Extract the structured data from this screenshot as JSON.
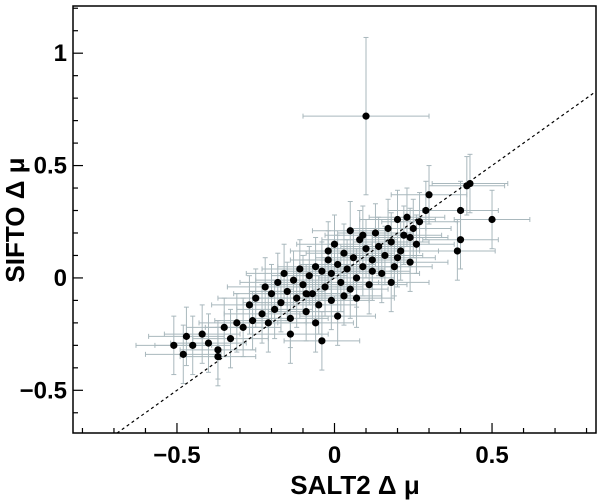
{
  "chart_data": {
    "type": "scatter",
    "title": "",
    "xlabel": "SALT2 Δ μ",
    "ylabel": "SIFTO Δ μ",
    "xlim": [
      -0.83,
      0.83
    ],
    "ylim": [
      -0.69,
      1.21
    ],
    "x_ticks": [
      -0.5,
      0,
      0.5
    ],
    "y_ticks": [
      -0.5,
      0,
      0.5,
      1
    ],
    "x_tick_labels": [
      "−0.5",
      "0",
      "0.5"
    ],
    "y_tick_labels": [
      "−0.5",
      "0",
      "0.5",
      "1"
    ],
    "grid": false,
    "legend": "none",
    "reference_line": {
      "style": "dashed",
      "slope": 1,
      "intercept": 0,
      "color": "#000000"
    },
    "colors": {
      "points": "#000000",
      "error_bars": "#a9b8bd",
      "frame": "#000000"
    },
    "series": [
      {
        "values": [
          {
            "x": 0.1,
            "y": 0.72,
            "xerr": 0.2,
            "yerr": 0.35
          },
          {
            "x": 0.5,
            "y": 0.26,
            "xerr": 0.12,
            "yerr": 0.13
          },
          {
            "x": 0.43,
            "y": 0.42,
            "xerr": 0.12,
            "yerr": 0.13
          },
          {
            "x": 0.42,
            "y": 0.41,
            "xerr": 0.12,
            "yerr": 0.13
          },
          {
            "x": 0.4,
            "y": 0.3,
            "xerr": 0.12,
            "yerr": 0.13
          },
          {
            "x": 0.4,
            "y": 0.17,
            "xerr": 0.12,
            "yerr": 0.13
          },
          {
            "x": 0.39,
            "y": 0.12,
            "xerr": 0.12,
            "yerr": 0.13
          },
          {
            "x": 0.3,
            "y": 0.37,
            "xerr": 0.12,
            "yerr": 0.13
          },
          {
            "x": 0.29,
            "y": 0.3,
            "xerr": 0.12,
            "yerr": 0.13
          },
          {
            "x": 0.27,
            "y": 0.25,
            "xerr": 0.12,
            "yerr": 0.13
          },
          {
            "x": 0.26,
            "y": 0.15,
            "xerr": 0.12,
            "yerr": 0.13
          },
          {
            "x": 0.25,
            "y": 0.22,
            "xerr": 0.12,
            "yerr": 0.13
          },
          {
            "x": 0.24,
            "y": 0.07,
            "xerr": 0.12,
            "yerr": 0.13
          },
          {
            "x": 0.23,
            "y": 0.27,
            "xerr": 0.12,
            "yerr": 0.13
          },
          {
            "x": 0.22,
            "y": 0.19,
            "xerr": 0.12,
            "yerr": 0.13
          },
          {
            "x": 0.21,
            "y": 0.12,
            "xerr": 0.12,
            "yerr": 0.13
          },
          {
            "x": 0.2,
            "y": 0.26,
            "xerr": 0.12,
            "yerr": 0.13
          },
          {
            "x": 0.19,
            "y": 0.05,
            "xerr": 0.12,
            "yerr": 0.13
          },
          {
            "x": 0.18,
            "y": 0.16,
            "xerr": 0.12,
            "yerr": 0.13
          },
          {
            "x": 0.17,
            "y": 0.22,
            "xerr": 0.12,
            "yerr": 0.13
          },
          {
            "x": 0.16,
            "y": 0.1,
            "xerr": 0.12,
            "yerr": 0.13
          },
          {
            "x": 0.15,
            "y": 0.02,
            "xerr": 0.12,
            "yerr": 0.13
          },
          {
            "x": 0.14,
            "y": 0.14,
            "xerr": 0.12,
            "yerr": 0.13
          },
          {
            "x": 0.13,
            "y": 0.2,
            "xerr": 0.12,
            "yerr": 0.13
          },
          {
            "x": 0.12,
            "y": 0.08,
            "xerr": 0.12,
            "yerr": 0.13
          },
          {
            "x": 0.11,
            "y": -0.03,
            "xerr": 0.12,
            "yerr": 0.13
          },
          {
            "x": 0.1,
            "y": 0.13,
            "xerr": 0.12,
            "yerr": 0.13
          },
          {
            "x": 0.09,
            "y": 0.05,
            "xerr": 0.12,
            "yerr": 0.13
          },
          {
            "x": 0.08,
            "y": 0.17,
            "xerr": 0.12,
            "yerr": 0.13
          },
          {
            "x": 0.07,
            "y": 0.0,
            "xerr": 0.12,
            "yerr": 0.13
          },
          {
            "x": 0.06,
            "y": 0.09,
            "xerr": 0.12,
            "yerr": 0.13
          },
          {
            "x": 0.05,
            "y": 0.21,
            "xerr": 0.12,
            "yerr": 0.13
          },
          {
            "x": 0.05,
            "y": -0.05,
            "xerr": 0.12,
            "yerr": 0.13
          },
          {
            "x": 0.04,
            "y": 0.04,
            "xerr": 0.12,
            "yerr": 0.13
          },
          {
            "x": 0.03,
            "y": 0.11,
            "xerr": 0.12,
            "yerr": 0.13
          },
          {
            "x": 0.02,
            "y": -0.02,
            "xerr": 0.12,
            "yerr": 0.13
          },
          {
            "x": 0.01,
            "y": 0.06,
            "xerr": 0.12,
            "yerr": 0.13
          },
          {
            "x": 0.0,
            "y": 0.15,
            "xerr": 0.12,
            "yerr": 0.13
          },
          {
            "x": -0.01,
            "y": 0.02,
            "xerr": 0.12,
            "yerr": 0.13
          },
          {
            "x": -0.01,
            "y": -0.1,
            "xerr": 0.12,
            "yerr": 0.13
          },
          {
            "x": -0.02,
            "y": 0.08,
            "xerr": 0.12,
            "yerr": 0.13
          },
          {
            "x": -0.03,
            "y": -0.04,
            "xerr": 0.12,
            "yerr": 0.13
          },
          {
            "x": -0.04,
            "y": 0.03,
            "xerr": 0.12,
            "yerr": 0.13
          },
          {
            "x": -0.05,
            "y": -0.12,
            "xerr": 0.12,
            "yerr": 0.13
          },
          {
            "x": -0.06,
            "y": 0.05,
            "xerr": 0.12,
            "yerr": 0.13
          },
          {
            "x": -0.07,
            "y": -0.07,
            "xerr": 0.12,
            "yerr": 0.13
          },
          {
            "x": -0.08,
            "y": 0.01,
            "xerr": 0.12,
            "yerr": 0.13
          },
          {
            "x": -0.09,
            "y": -0.15,
            "xerr": 0.12,
            "yerr": 0.13
          },
          {
            "x": -0.1,
            "y": -0.03,
            "xerr": 0.12,
            "yerr": 0.13
          },
          {
            "x": -0.11,
            "y": 0.04,
            "xerr": 0.12,
            "yerr": 0.13
          },
          {
            "x": -0.12,
            "y": -0.09,
            "xerr": 0.12,
            "yerr": 0.13
          },
          {
            "x": -0.13,
            "y": -0.01,
            "xerr": 0.12,
            "yerr": 0.13
          },
          {
            "x": -0.14,
            "y": -0.18,
            "xerr": 0.12,
            "yerr": 0.13
          },
          {
            "x": -0.15,
            "y": -0.06,
            "xerr": 0.12,
            "yerr": 0.13
          },
          {
            "x": -0.16,
            "y": 0.02,
            "xerr": 0.12,
            "yerr": 0.13
          },
          {
            "x": -0.17,
            "y": -0.11,
            "xerr": 0.12,
            "yerr": 0.13
          },
          {
            "x": -0.18,
            "y": -0.02,
            "xerr": 0.12,
            "yerr": 0.13
          },
          {
            "x": -0.19,
            "y": -0.14,
            "xerr": 0.12,
            "yerr": 0.13
          },
          {
            "x": -0.2,
            "y": -0.07,
            "xerr": 0.12,
            "yerr": 0.13
          },
          {
            "x": -0.21,
            "y": -0.2,
            "xerr": 0.12,
            "yerr": 0.13
          },
          {
            "x": -0.22,
            "y": -0.04,
            "xerr": 0.12,
            "yerr": 0.13
          },
          {
            "x": -0.23,
            "y": -0.16,
            "xerr": 0.12,
            "yerr": 0.13
          },
          {
            "x": -0.25,
            "y": -0.09,
            "xerr": 0.12,
            "yerr": 0.13
          },
          {
            "x": -0.26,
            "y": -0.19,
            "xerr": 0.12,
            "yerr": 0.13
          },
          {
            "x": -0.27,
            "y": -0.12,
            "xerr": 0.12,
            "yerr": 0.13
          },
          {
            "x": -0.29,
            "y": -0.22,
            "xerr": 0.12,
            "yerr": 0.13
          },
          {
            "x": -0.31,
            "y": -0.2,
            "xerr": 0.12,
            "yerr": 0.13
          },
          {
            "x": -0.33,
            "y": -0.27,
            "xerr": 0.12,
            "yerr": 0.13
          },
          {
            "x": -0.35,
            "y": -0.22,
            "xerr": 0.12,
            "yerr": 0.13
          },
          {
            "x": -0.37,
            "y": -0.32,
            "xerr": 0.12,
            "yerr": 0.13
          },
          {
            "x": -0.37,
            "y": -0.35,
            "xerr": 0.12,
            "yerr": 0.13
          },
          {
            "x": -0.4,
            "y": -0.29,
            "xerr": 0.12,
            "yerr": 0.13
          },
          {
            "x": -0.42,
            "y": -0.25,
            "xerr": 0.12,
            "yerr": 0.13
          },
          {
            "x": -0.45,
            "y": -0.3,
            "xerr": 0.12,
            "yerr": 0.13
          },
          {
            "x": -0.47,
            "y": -0.26,
            "xerr": 0.12,
            "yerr": 0.13
          },
          {
            "x": -0.48,
            "y": -0.34,
            "xerr": 0.12,
            "yerr": 0.13
          },
          {
            "x": -0.51,
            "y": -0.3,
            "xerr": 0.12,
            "yerr": 0.13
          },
          {
            "x": 0.07,
            "y": -0.09,
            "xerr": 0.12,
            "yerr": 0.13
          },
          {
            "x": -0.04,
            "y": -0.28,
            "xerr": 0.12,
            "yerr": 0.13
          },
          {
            "x": -0.14,
            "y": -0.25,
            "xerr": 0.12,
            "yerr": 0.13
          },
          {
            "x": 0.01,
            "y": -0.17,
            "xerr": 0.12,
            "yerr": 0.13
          },
          {
            "x": -0.06,
            "y": -0.2,
            "xerr": 0.12,
            "yerr": 0.13
          },
          {
            "x": 0.12,
            "y": 0.03,
            "xerr": 0.12,
            "yerr": 0.13
          },
          {
            "x": 0.18,
            "y": -0.02,
            "xerr": 0.12,
            "yerr": 0.13
          },
          {
            "x": -0.09,
            "y": -0.07,
            "xerr": 0.12,
            "yerr": 0.13
          },
          {
            "x": 0.03,
            "y": -0.08,
            "xerr": 0.12,
            "yerr": 0.13
          },
          {
            "x": -0.02,
            "y": 0.12,
            "xerr": 0.12,
            "yerr": 0.13
          },
          {
            "x": 0.09,
            "y": 0.19,
            "xerr": 0.12,
            "yerr": 0.13
          },
          {
            "x": 0.2,
            "y": 0.09,
            "xerr": 0.12,
            "yerr": 0.13
          },
          {
            "x": 0.24,
            "y": 0.18,
            "xerr": 0.12,
            "yerr": 0.13
          }
        ]
      }
    ]
  }
}
